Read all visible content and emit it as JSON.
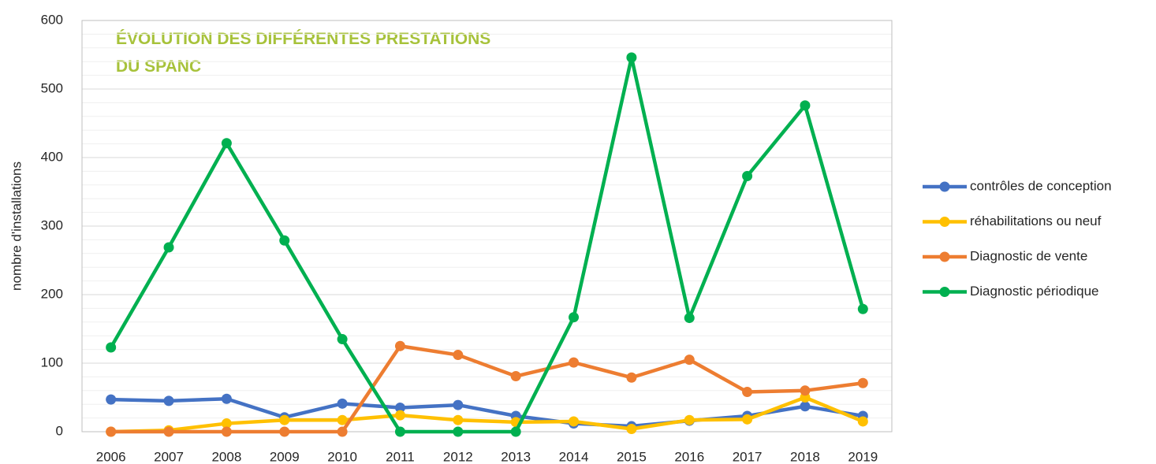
{
  "chart_data": {
    "type": "line",
    "title": [
      "ÉVOLUTION DES DIFFÉRENTES PRESTATIONS",
      "DU SPANC"
    ],
    "y_label": "nombre d'installations",
    "categories": [
      "2006",
      "2007",
      "2008",
      "2009",
      "2010",
      "2011",
      "2012",
      "2013",
      "2014",
      "2015",
      "2016",
      "2017",
      "2018",
      "2019"
    ],
    "series": [
      {
        "name": "contrôles de conception",
        "color": "#4472c4",
        "values": [
          47,
          45,
          48,
          21,
          41,
          35,
          39,
          23,
          12,
          8,
          16,
          23,
          37,
          23
        ]
      },
      {
        "name": "réhabilitations ou  neuf",
        "color": "#ffc000",
        "values": [
          0,
          2,
          12,
          17,
          17,
          24,
          17,
          14,
          15,
          4,
          17,
          18,
          50,
          15
        ]
      },
      {
        "name": "Diagnostic de vente",
        "color": "#ed7d31",
        "values": [
          0,
          0,
          0,
          0,
          0,
          125,
          112,
          81,
          101,
          79,
          105,
          58,
          60,
          71
        ]
      },
      {
        "name": "Diagnostic périodique",
        "color": "#00b050",
        "values": [
          123,
          269,
          421,
          279,
          135,
          0,
          0,
          0,
          167,
          546,
          166,
          373,
          476,
          179
        ]
      }
    ],
    "ylim": [
      0,
      600
    ],
    "yticks": [
      0,
      100,
      200,
      300,
      400,
      500,
      600
    ],
    "minor_yticks": [
      20,
      40,
      60,
      80,
      120,
      140,
      160,
      180,
      220,
      240,
      260,
      280,
      320,
      340,
      360,
      380,
      420,
      440,
      460,
      480,
      520,
      540,
      560,
      580
    ],
    "grid": true,
    "legend": "right"
  }
}
